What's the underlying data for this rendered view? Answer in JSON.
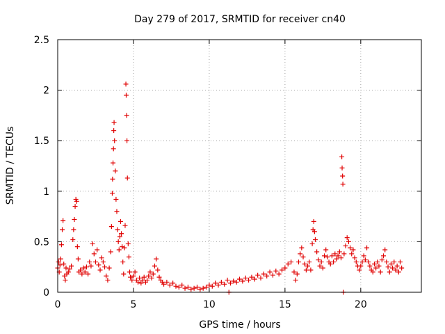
{
  "chart_data": {
    "type": "scatter",
    "title": "Day 279 of 2017, SRMTID for receiver cn40",
    "xlabel": "GPS time / hours",
    "ylabel": "SRMTID / TECUs",
    "xlim": [
      0,
      24
    ],
    "ylim": [
      0,
      2.5
    ],
    "xticks": [
      0,
      5,
      10,
      15,
      20
    ],
    "yticks": [
      0,
      0.5,
      1,
      1.5,
      2,
      2.5
    ],
    "xtick_labels": [
      "0",
      "5",
      "10",
      "15",
      "20"
    ],
    "ytick_labels": [
      "0",
      "0.5",
      "1",
      "1.5",
      "2",
      "2.5"
    ],
    "grid": true,
    "marker": "+",
    "series": [
      {
        "name": "SRMTID",
        "color": "#e00000",
        "points": [
          [
            0.0,
            0.24
          ],
          [
            0.05,
            0.3
          ],
          [
            0.1,
            0.2
          ],
          [
            0.15,
            0.27
          ],
          [
            0.2,
            0.33
          ],
          [
            0.25,
            0.47
          ],
          [
            0.3,
            0.62
          ],
          [
            0.35,
            0.71
          ],
          [
            0.4,
            0.28
          ],
          [
            0.45,
            0.16
          ],
          [
            0.5,
            0.12
          ],
          [
            0.55,
            0.24
          ],
          [
            0.6,
            0.18
          ],
          [
            0.7,
            0.2
          ],
          [
            0.8,
            0.23
          ],
          [
            0.9,
            0.26
          ],
          [
            1.0,
            0.52
          ],
          [
            1.05,
            0.62
          ],
          [
            1.1,
            0.72
          ],
          [
            1.15,
            0.85
          ],
          [
            1.2,
            0.92
          ],
          [
            1.25,
            0.9
          ],
          [
            1.3,
            0.45
          ],
          [
            1.35,
            0.33
          ],
          [
            1.4,
            0.2
          ],
          [
            1.5,
            0.22
          ],
          [
            1.6,
            0.18
          ],
          [
            1.7,
            0.24
          ],
          [
            1.8,
            0.2
          ],
          [
            1.9,
            0.25
          ],
          [
            2.0,
            0.18
          ],
          [
            2.1,
            0.3
          ],
          [
            2.2,
            0.26
          ],
          [
            2.3,
            0.48
          ],
          [
            2.4,
            0.38
          ],
          [
            2.5,
            0.3
          ],
          [
            2.6,
            0.42
          ],
          [
            2.7,
            0.27
          ],
          [
            2.8,
            0.22
          ],
          [
            2.9,
            0.34
          ],
          [
            3.0,
            0.3
          ],
          [
            3.1,
            0.25
          ],
          [
            3.2,
            0.16
          ],
          [
            3.3,
            0.12
          ],
          [
            3.4,
            0.24
          ],
          [
            3.5,
            0.4
          ],
          [
            3.55,
            0.65
          ],
          [
            3.6,
            0.98
          ],
          [
            3.62,
            1.12
          ],
          [
            3.65,
            1.28
          ],
          [
            3.68,
            1.42
          ],
          [
            3.7,
            1.6
          ],
          [
            3.72,
            1.68
          ],
          [
            3.75,
            1.5
          ],
          [
            3.8,
            1.2
          ],
          [
            3.85,
            0.92
          ],
          [
            3.9,
            0.8
          ],
          [
            3.95,
            0.62
          ],
          [
            4.0,
            0.5
          ],
          [
            4.05,
            0.42
          ],
          [
            4.1,
            0.55
          ],
          [
            4.15,
            0.7
          ],
          [
            4.2,
            0.58
          ],
          [
            4.25,
            0.45
          ],
          [
            4.3,
            0.3
          ],
          [
            4.35,
            0.18
          ],
          [
            4.4,
            0.44
          ],
          [
            4.45,
            0.66
          ],
          [
            4.5,
            2.06
          ],
          [
            4.52,
            1.95
          ],
          [
            4.55,
            1.75
          ],
          [
            4.57,
            1.5
          ],
          [
            4.6,
            1.13
          ],
          [
            4.65,
            0.48
          ],
          [
            4.7,
            0.35
          ],
          [
            4.75,
            0.2
          ],
          [
            4.8,
            0.15
          ],
          [
            4.9,
            0.12
          ],
          [
            5.0,
            0.16
          ],
          [
            5.1,
            0.2
          ],
          [
            5.2,
            0.12
          ],
          [
            5.3,
            0.1
          ],
          [
            5.4,
            0.14
          ],
          [
            5.5,
            0.09
          ],
          [
            5.6,
            0.12
          ],
          [
            5.7,
            0.15
          ],
          [
            5.8,
            0.1
          ],
          [
            5.9,
            0.12
          ],
          [
            6.0,
            0.16
          ],
          [
            6.1,
            0.2
          ],
          [
            6.2,
            0.14
          ],
          [
            6.3,
            0.18
          ],
          [
            6.4,
            0.26
          ],
          [
            6.5,
            0.33
          ],
          [
            6.6,
            0.22
          ],
          [
            6.7,
            0.15
          ],
          [
            6.8,
            0.12
          ],
          [
            6.9,
            0.1
          ],
          [
            7.0,
            0.08
          ],
          [
            7.2,
            0.1
          ],
          [
            7.4,
            0.07
          ],
          [
            7.6,
            0.09
          ],
          [
            7.8,
            0.06
          ],
          [
            8.0,
            0.05
          ],
          [
            8.2,
            0.07
          ],
          [
            8.4,
            0.04
          ],
          [
            8.6,
            0.05
          ],
          [
            8.8,
            0.03
          ],
          [
            9.0,
            0.04
          ],
          [
            9.2,
            0.05
          ],
          [
            9.4,
            0.03
          ],
          [
            9.6,
            0.04
          ],
          [
            9.8,
            0.05
          ],
          [
            10.0,
            0.07
          ],
          [
            10.2,
            0.06
          ],
          [
            10.4,
            0.09
          ],
          [
            10.6,
            0.07
          ],
          [
            10.8,
            0.1
          ],
          [
            11.0,
            0.08
          ],
          [
            11.2,
            0.12
          ],
          [
            11.3,
            0.0
          ],
          [
            11.4,
            0.09
          ],
          [
            11.6,
            0.11
          ],
          [
            11.8,
            0.1
          ],
          [
            12.0,
            0.13
          ],
          [
            12.2,
            0.11
          ],
          [
            12.4,
            0.14
          ],
          [
            12.6,
            0.12
          ],
          [
            12.8,
            0.15
          ],
          [
            13.0,
            0.13
          ],
          [
            13.2,
            0.17
          ],
          [
            13.4,
            0.14
          ],
          [
            13.6,
            0.18
          ],
          [
            13.8,
            0.16
          ],
          [
            14.0,
            0.2
          ],
          [
            14.2,
            0.17
          ],
          [
            14.4,
            0.21
          ],
          [
            14.6,
            0.18
          ],
          [
            14.8,
            0.22
          ],
          [
            15.0,
            0.24
          ],
          [
            15.2,
            0.28
          ],
          [
            15.4,
            0.3
          ],
          [
            15.6,
            0.2
          ],
          [
            15.7,
            0.12
          ],
          [
            15.8,
            0.18
          ],
          [
            15.9,
            0.3
          ],
          [
            16.0,
            0.38
          ],
          [
            16.1,
            0.44
          ],
          [
            16.2,
            0.35
          ],
          [
            16.3,
            0.28
          ],
          [
            16.4,
            0.22
          ],
          [
            16.5,
            0.26
          ],
          [
            16.6,
            0.3
          ],
          [
            16.7,
            0.22
          ],
          [
            16.8,
            0.48
          ],
          [
            16.85,
            0.62
          ],
          [
            16.9,
            0.7
          ],
          [
            16.95,
            0.6
          ],
          [
            17.0,
            0.52
          ],
          [
            17.1,
            0.4
          ],
          [
            17.2,
            0.32
          ],
          [
            17.3,
            0.26
          ],
          [
            17.4,
            0.3
          ],
          [
            17.5,
            0.24
          ],
          [
            17.6,
            0.36
          ],
          [
            17.7,
            0.42
          ],
          [
            17.8,
            0.35
          ],
          [
            17.9,
            0.3
          ],
          [
            18.0,
            0.28
          ],
          [
            18.1,
            0.36
          ],
          [
            18.2,
            0.3
          ],
          [
            18.3,
            0.38
          ],
          [
            18.4,
            0.33
          ],
          [
            18.5,
            0.36
          ],
          [
            18.6,
            0.4
          ],
          [
            18.7,
            0.34
          ],
          [
            18.75,
            1.34
          ],
          [
            18.77,
            1.23
          ],
          [
            18.8,
            1.15
          ],
          [
            18.82,
            1.07
          ],
          [
            18.85,
            0.0
          ],
          [
            18.9,
            0.38
          ],
          [
            19.0,
            0.46
          ],
          [
            19.1,
            0.54
          ],
          [
            19.2,
            0.5
          ],
          [
            19.3,
            0.44
          ],
          [
            19.4,
            0.38
          ],
          [
            19.5,
            0.42
          ],
          [
            19.6,
            0.34
          ],
          [
            19.7,
            0.3
          ],
          [
            19.8,
            0.26
          ],
          [
            19.9,
            0.22
          ],
          [
            20.0,
            0.26
          ],
          [
            20.1,
            0.3
          ],
          [
            20.2,
            0.36
          ],
          [
            20.3,
            0.32
          ],
          [
            20.4,
            0.44
          ],
          [
            20.5,
            0.3
          ],
          [
            20.6,
            0.26
          ],
          [
            20.7,
            0.22
          ],
          [
            20.8,
            0.2
          ],
          [
            20.9,
            0.28
          ],
          [
            21.0,
            0.24
          ],
          [
            21.1,
            0.3
          ],
          [
            21.2,
            0.26
          ],
          [
            21.3,
            0.2
          ],
          [
            21.4,
            0.32
          ],
          [
            21.5,
            0.36
          ],
          [
            21.6,
            0.42
          ],
          [
            21.7,
            0.3
          ],
          [
            21.8,
            0.25
          ],
          [
            21.9,
            0.2
          ],
          [
            22.0,
            0.28
          ],
          [
            22.1,
            0.24
          ],
          [
            22.2,
            0.3
          ],
          [
            22.3,
            0.22
          ],
          [
            22.4,
            0.26
          ],
          [
            22.5,
            0.2
          ],
          [
            22.6,
            0.3
          ],
          [
            22.7,
            0.24
          ]
        ]
      }
    ]
  }
}
